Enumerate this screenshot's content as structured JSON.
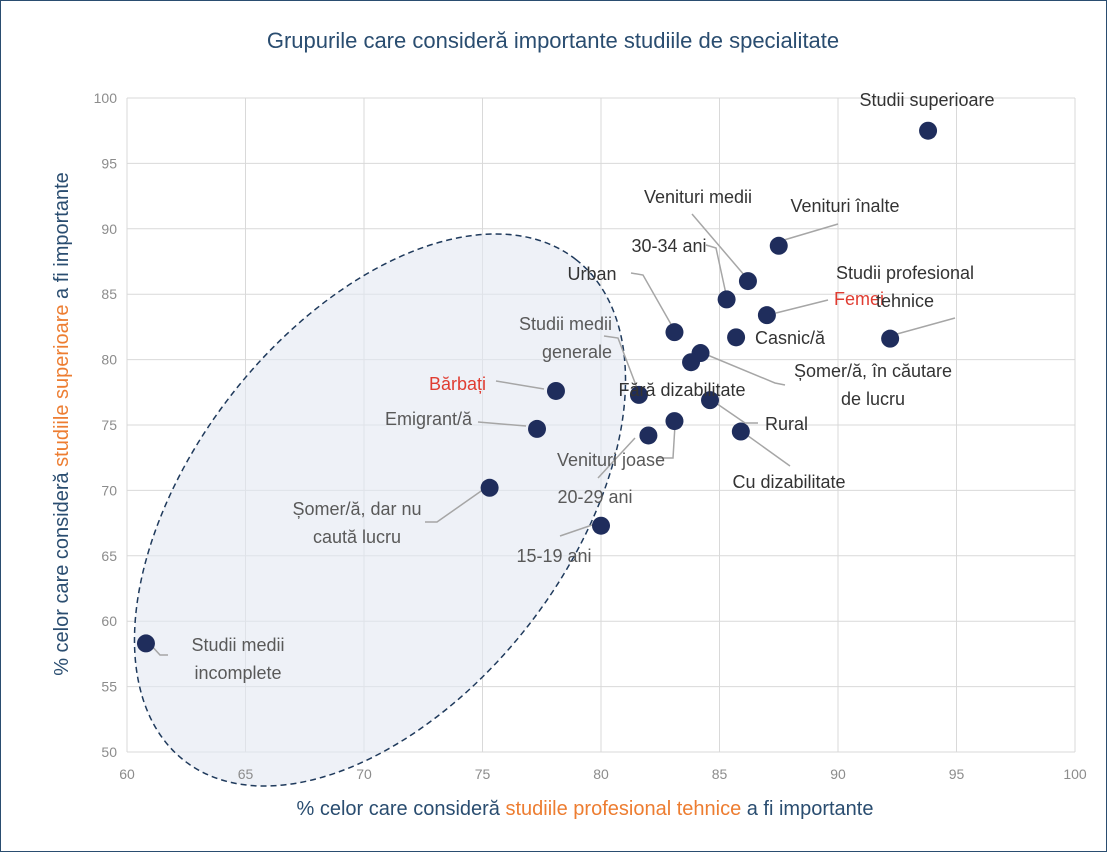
{
  "chart_data": {
    "type": "scatter",
    "title": "Grupurile care consideră importante studiile de specialitate",
    "x_label": [
      "% celor care consideră ",
      "studiile profesional tehnice",
      " a fi importante"
    ],
    "y_label": [
      "% celor care consideră ",
      "studiile superioare",
      " a fi importante"
    ],
    "label_colors": [
      "#2a4d70",
      "#ed7d31",
      "#2a4d70"
    ],
    "labels": [
      [
        "Studii superioare"
      ],
      [
        "Venituri înalte"
      ],
      [
        "Venituri medii"
      ],
      [
        "30-34 ani"
      ],
      [
        "Femei"
      ],
      [
        "Casnic/ă"
      ],
      [
        "Studii profesional",
        "tehnice"
      ],
      [
        "Urban"
      ],
      [
        "Șomer/ă, în căutare",
        "de lucru"
      ],
      [
        "Fără dizabilitate"
      ],
      [
        "Studii medii",
        "generale"
      ],
      [
        "Rural"
      ],
      [
        "Bărbați"
      ],
      [
        "Emigrant/ă"
      ],
      [
        "Venituri joase"
      ],
      [
        "20-29 ani"
      ],
      [
        "Cu dizabilitate"
      ],
      [
        "Șomer/ă, dar nu",
        "caută lucru"
      ],
      [
        "15-19 ani"
      ],
      [
        "Studii medii",
        "incomplete"
      ]
    ],
    "x": [
      93.8,
      87.5,
      86.2,
      85.3,
      87.0,
      85.7,
      92.2,
      83.1,
      84.2,
      83.8,
      81.6,
      84.6,
      78.1,
      77.3,
      83.1,
      82.0,
      85.9,
      75.3,
      80.0,
      60.8
    ],
    "y": [
      97.5,
      88.7,
      86.0,
      84.6,
      83.4,
      81.7,
      81.6,
      82.1,
      80.5,
      79.8,
      77.3,
      76.9,
      77.6,
      74.7,
      75.3,
      74.2,
      74.5,
      70.2,
      67.3,
      58.3
    ],
    "point_label_colors": [
      "#333333",
      "#333333",
      "#333333",
      "#333333",
      "#e03c31",
      "#333333",
      "#333333",
      "#333333",
      "#333333",
      "#333333",
      "#595959",
      "#333333",
      "#e03c31",
      "#595959",
      "#595959",
      "#595959",
      "#333333",
      "#595959",
      "#595959",
      "#595959"
    ],
    "color": "#1f2d5c",
    "xlim": [
      60,
      100
    ],
    "xticks": [
      60,
      65,
      70,
      75,
      80,
      85,
      90,
      95,
      100
    ],
    "ylim": [
      50,
      100
    ],
    "yticks": [
      50,
      55,
      60,
      65,
      70,
      75,
      80,
      85,
      90,
      95,
      100
    ],
    "grid": true
  }
}
